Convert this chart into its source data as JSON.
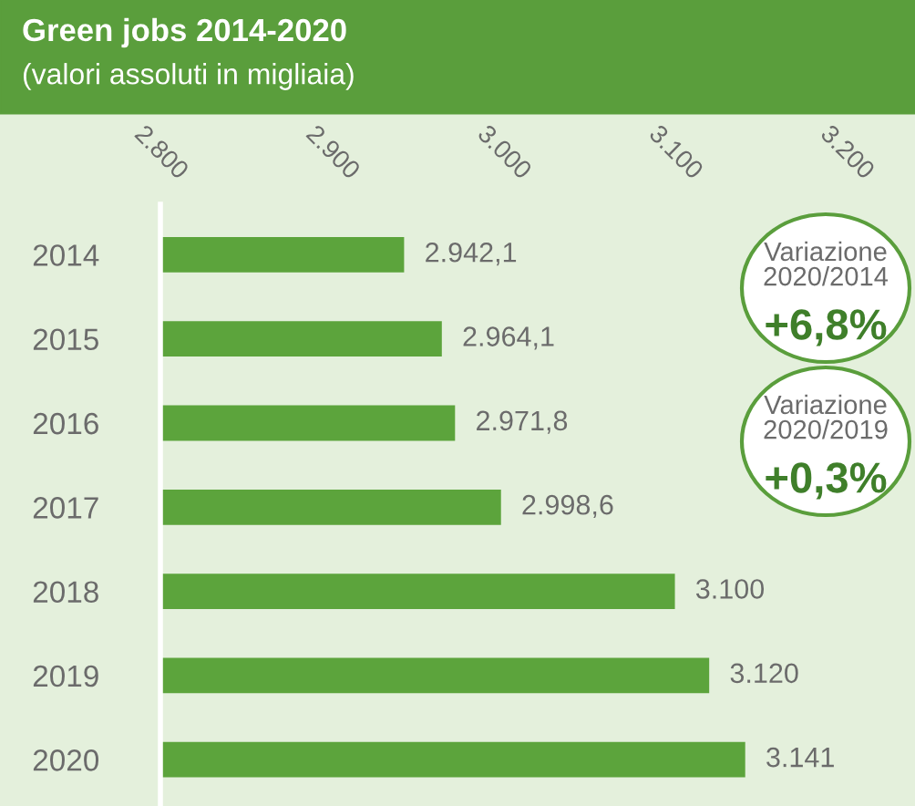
{
  "chart_data": {
    "type": "bar",
    "orientation": "horizontal",
    "title": "Green jobs 2014-2020",
    "subtitle": "(valori assoluti in migliaia)",
    "categories": [
      "2014",
      "2015",
      "2016",
      "2017",
      "2018",
      "2019",
      "2020"
    ],
    "values": [
      2942.1,
      2964.1,
      2971.8,
      2998.6,
      3100,
      3120,
      3141
    ],
    "value_labels": [
      "2.942,1",
      "2.964,1",
      "2.971,8",
      "2.998,6",
      "3.100",
      "3.120",
      "3.141"
    ],
    "color": "#5ca43c",
    "xlim": [
      2800,
      3240
    ],
    "xticks": [
      {
        "value": 2800,
        "label": "2.800"
      },
      {
        "value": 2900,
        "label": "2.900"
      },
      {
        "value": 3000,
        "label": "3.000"
      },
      {
        "value": 3100,
        "label": "3.100"
      },
      {
        "value": 3200,
        "label": "3.200"
      }
    ],
    "annotations": [
      "Variazione\n2020/2014\n+6,8%",
      "Variazione\n2020/2019\n+0,3%"
    ],
    "grid": false,
    "legend": false
  }
}
